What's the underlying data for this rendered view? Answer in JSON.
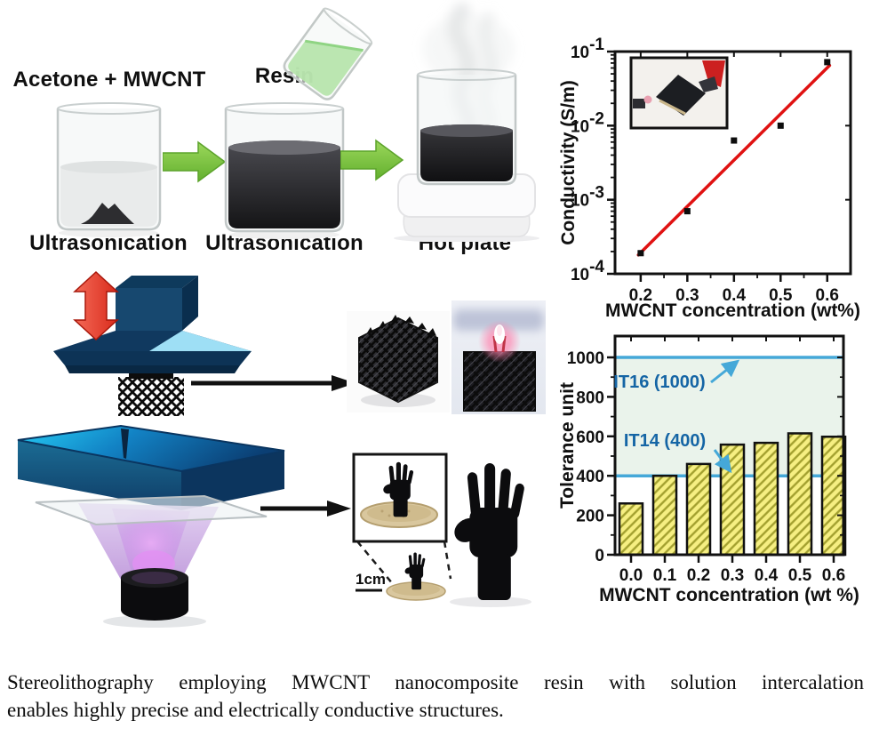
{
  "figure": {
    "process": {
      "step1_title": "Acetone + MWCNT",
      "step1_caption": "Ultrasonication",
      "step2_title": "Resin",
      "step2_caption": "Ultrasonication",
      "step3_caption": "Hot plate"
    },
    "printing": {
      "scale_label": "1cm"
    },
    "caption_line1": "Stereolithography employing MWCNT nanocomposite resin with solution intercalation",
    "caption_line2": "enables highly precise and electrically conductive structures."
  },
  "colors": {
    "green_arrow": "#76c33e",
    "fit_line_red": "#e01212",
    "ref_line_blue": "#45a8d8",
    "annotation_blue": "#1565a5",
    "bar_yellow": "#f6ef82",
    "bar_hatch": "#a3a02f",
    "band_green": "#eaf3eb"
  },
  "chart_data": [
    {
      "type": "scatter",
      "xlabel": "MWCNT concentration (wt%)",
      "ylabel": "Conductivity (S/m)",
      "x": [
        0.2,
        0.3,
        0.4,
        0.5,
        0.6
      ],
      "y": [
        0.00019,
        0.0007,
        0.0063,
        0.01,
        0.072
      ],
      "y_scale": "log",
      "xlim": [
        0.145,
        0.65
      ],
      "ylim": [
        0.0001,
        0.1
      ],
      "x_ticks": [
        0.2,
        0.3,
        0.4,
        0.5,
        0.6
      ],
      "y_tick_exponents": [
        -4,
        -3,
        -2,
        -1
      ],
      "fit_line": {
        "x": [
          0.195,
          0.605
        ],
        "y": [
          0.00018,
          0.065
        ],
        "color": "#e01212"
      },
      "marker": "square",
      "marker_color": "#0d0d0d",
      "inset": "photo of black nanocomposite sample held by alligator clips"
    },
    {
      "type": "bar",
      "xlabel": "MWCNT concentration (wt %)",
      "ylabel": "Tolerance unit",
      "categories": [
        "0.0",
        "0.1",
        "0.2",
        "0.3",
        "0.4",
        "0.5",
        "0.6"
      ],
      "values": [
        260,
        400,
        460,
        558,
        567,
        615,
        598
      ],
      "ylim": [
        0,
        1100
      ],
      "y_ticks": [
        0,
        200,
        400,
        600,
        800,
        1000
      ],
      "ref_lines": [
        {
          "label": "IT16 (1000)",
          "value": 1000
        },
        {
          "label": "IT14 (400)",
          "value": 400
        }
      ],
      "band": [
        400,
        1000
      ],
      "band_fill": "#eaf3eb",
      "bar_fill": "#f6ef82",
      "hatch_color": "#a3a02f",
      "line_color": "#45a8d8",
      "annotation_color": "#1565a5"
    }
  ]
}
